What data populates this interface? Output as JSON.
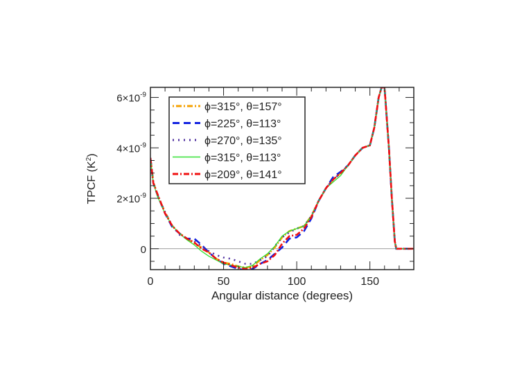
{
  "chart_data": {
    "type": "line",
    "title": "",
    "xlabel": "Angular distance (degrees)",
    "ylabel": "TPCF (K²)",
    "ylabel_base": "TPCF (K",
    "ylabel_sup": "2",
    "ylabel_close": ")",
    "xlim": [
      0,
      180
    ],
    "ylim": [
      -8.3e-10,
      6.4e-09
    ],
    "x_ticks": [
      {
        "v": 0,
        "label": "0"
      },
      {
        "v": 50,
        "label": "50"
      },
      {
        "v": 100,
        "label": "100"
      },
      {
        "v": 150,
        "label": "150"
      }
    ],
    "y_ticks": [
      {
        "v": 0,
        "label": "0",
        "exp": ""
      },
      {
        "v": 2e-09,
        "label": "2×10",
        "exp": "-9"
      },
      {
        "v": 4e-09,
        "label": "4×10",
        "exp": "-9"
      },
      {
        "v": 6e-09,
        "label": "6×10",
        "exp": "-9"
      }
    ],
    "zero_line": true,
    "legend_placement": "top-left",
    "x": [
      0,
      2,
      5,
      10,
      15,
      20,
      25,
      30,
      35,
      40,
      45,
      50,
      55,
      60,
      65,
      70,
      75,
      80,
      85,
      90,
      95,
      100,
      105,
      110,
      115,
      120,
      125,
      130,
      135,
      140,
      145,
      150,
      153,
      156,
      158,
      160,
      163,
      165,
      167,
      168,
      170,
      175,
      180
    ],
    "base_e9": [
      3.6,
      2.6,
      2.1,
      1.4,
      0.9,
      0.6,
      0.4,
      0.25,
      0.05,
      -0.15,
      -0.35,
      -0.5,
      -0.6,
      -0.7,
      -0.75,
      -0.7,
      -0.5,
      -0.3,
      0.0,
      0.35,
      0.6,
      0.75,
      0.9,
      1.3,
      1.9,
      2.4,
      2.75,
      3.0,
      3.3,
      3.7,
      4.0,
      4.1,
      4.8,
      6.0,
      6.4,
      6.4,
      4.0,
      2.0,
      0.3,
      0,
      0,
      0,
      0
    ],
    "series": [
      {
        "name_phi": "315",
        "name_theta": "157",
        "label_phi": "ϕ=315°, ",
        "label_theta": "θ=157°",
        "color": "#f5a000",
        "dash": "2,3,8,3",
        "offset_e9": [
          0,
          0.05,
          0,
          0.05,
          0,
          0,
          0,
          -0.05,
          0,
          0,
          -0.05,
          -0.05,
          0,
          0,
          0,
          0,
          0.05,
          0.05,
          0.05,
          0.1,
          0.1,
          0.05,
          0,
          0,
          0,
          0,
          0,
          0,
          0,
          0,
          0,
          0,
          0,
          0,
          0,
          0,
          0,
          0,
          0,
          0,
          0,
          0,
          0
        ]
      },
      {
        "name_phi": "225",
        "name_theta": "113",
        "label_phi": "ϕ=225°, ",
        "label_theta": "θ=113°",
        "color": "#1020e0",
        "dash": "10,6",
        "offset_e9": [
          0,
          0,
          0,
          0,
          -0.05,
          0,
          0,
          0.15,
          0.1,
          0,
          -0.05,
          -0.1,
          -0.1,
          -0.1,
          -0.1,
          -0.1,
          -0.1,
          -0.15,
          -0.2,
          -0.3,
          -0.2,
          -0.3,
          -0.2,
          -0.1,
          0,
          0,
          0.1,
          0.05,
          0,
          0,
          0,
          0,
          0,
          0,
          0,
          0,
          0,
          0,
          0,
          0,
          0,
          0,
          0
        ]
      },
      {
        "name_phi": "270",
        "name_theta": "135",
        "label_phi": "ϕ=270°, ",
        "label_theta": "θ=135°",
        "color": "#5030a0",
        "dash": "2,6",
        "offset_e9": [
          0,
          0,
          0,
          0.05,
          0,
          -0.05,
          0,
          0.05,
          0.05,
          0.05,
          0.1,
          0.15,
          0.2,
          0.2,
          0.15,
          0.1,
          0.05,
          0,
          0.1,
          0.1,
          0.05,
          0.05,
          0,
          0,
          0,
          0,
          0,
          0,
          0,
          0,
          0,
          0,
          0,
          0,
          0,
          0,
          0,
          0,
          0,
          0,
          0,
          0,
          0
        ]
      },
      {
        "name_phi": "315",
        "name_theta": "113",
        "label_phi": "ϕ=315°, ",
        "label_theta": "θ=113°",
        "color": "#30e030",
        "dash": "",
        "offset_e9": [
          0,
          0,
          -0.05,
          0,
          0,
          0,
          -0.05,
          -0.1,
          -0.15,
          -0.15,
          -0.1,
          -0.1,
          -0.05,
          0,
          0,
          0.05,
          0.1,
          0.1,
          0.1,
          0.15,
          0.1,
          0.05,
          0,
          0,
          0,
          0,
          -0.1,
          -0.1,
          0,
          0,
          0,
          0,
          0,
          0,
          0,
          0,
          0,
          0,
          0,
          0,
          0,
          0,
          0
        ]
      },
      {
        "name_phi": "209",
        "name_theta": "141",
        "label_phi": "ϕ=209°, ",
        "label_theta": "θ=141°",
        "color": "#f01010",
        "dash": "8,3,2,3",
        "offset_e9": [
          0,
          0,
          0.05,
          0,
          0,
          0,
          0,
          0,
          -0.05,
          0,
          -0.05,
          -0.05,
          -0.05,
          -0.05,
          -0.05,
          -0.05,
          -0.1,
          -0.2,
          -0.25,
          -0.15,
          -0.1,
          -0.2,
          -0.1,
          -0.05,
          0,
          0,
          0,
          0,
          0,
          0,
          0,
          0,
          0,
          0,
          0,
          0,
          0,
          0,
          0,
          0,
          0,
          0,
          0
        ]
      }
    ]
  }
}
